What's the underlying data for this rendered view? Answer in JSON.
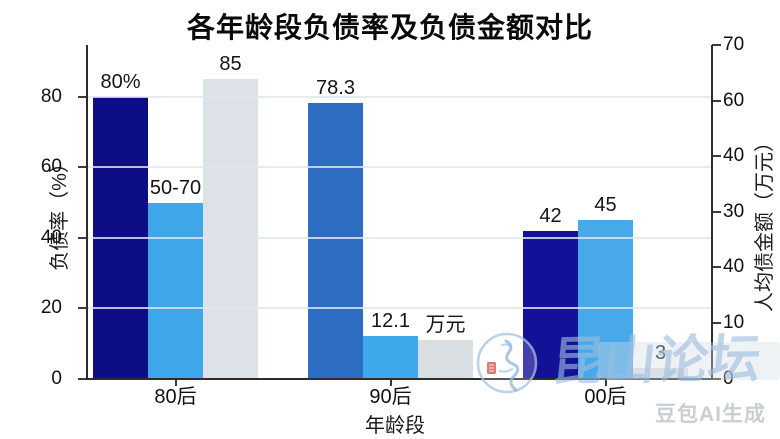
{
  "chart_data": {
    "type": "bar",
    "title": "各年龄段负债率及负债金额对比",
    "categories": [
      "80后",
      "90后",
      "00后"
    ],
    "series": [
      {
        "name": "debt-ratio-bars",
        "values": [
          80,
          78.3,
          42
        ],
        "labels": [
          "80%",
          "78.3",
          "42"
        ],
        "colors": [
          "#0d0d86",
          "#2d6ec4",
          "#141199"
        ]
      },
      {
        "name": "light-blue-bars",
        "values": [
          50,
          12.1,
          45
        ],
        "labels": [
          "50-70",
          "12.1",
          "45"
        ],
        "colors": [
          "#3fa6ea",
          "#3da8ec",
          "#47a9ea"
        ]
      },
      {
        "name": "gray-bars",
        "values": [
          85,
          11,
          3
        ],
        "labels": [
          "85",
          "万元",
          "3"
        ],
        "colors": [
          "#dce2e8",
          "#d9dee3",
          "#dce1e6"
        ]
      }
    ],
    "left_axis": {
      "label": "负债率（%）",
      "ticks": [
        "0",
        "20",
        "40",
        "60",
        "80"
      ],
      "range": [
        0,
        94.7
      ]
    },
    "right_axis": {
      "label": "人均债金额（万元）",
      "ticks_top_to_bottom": [
        "70",
        "60",
        "40",
        "30",
        "40",
        "10",
        "0"
      ]
    },
    "x_axis": {
      "label": "年龄段"
    },
    "grid": true,
    "legend": "none"
  },
  "watermark": {
    "site": "昆山论坛",
    "generator": "豆包AI生成"
  },
  "colors": {
    "background": "#ffffff",
    "axis": "#2d2d2d",
    "gridline": "#e2e6ee",
    "value_label": "#151515",
    "watermark_blue": "#9dbddd",
    "watermark_gray": "#c9ced5"
  }
}
